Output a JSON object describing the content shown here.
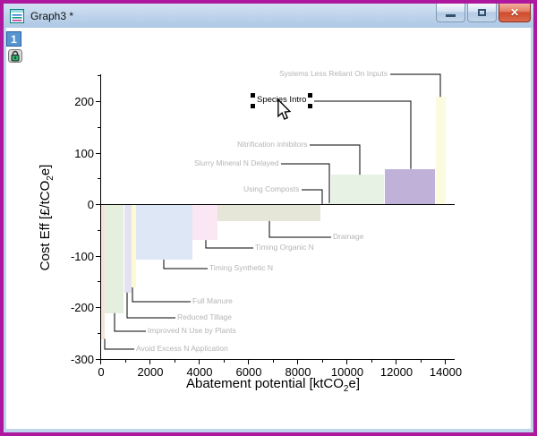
{
  "window": {
    "title": "Graph3 *",
    "buttons": {
      "minimize": "minimize",
      "restore": "restore",
      "close": "close"
    },
    "close_glyph": "✕"
  },
  "layer_panel": {
    "layer_badge": "1"
  },
  "icons": {
    "window_icon": "graph-window-icon",
    "lock": "lock-icon",
    "cursor": "arrow-cursor"
  },
  "chart_data": {
    "type": "bar",
    "title": "",
    "xlabel": "Abatement potential [ktCO2e]",
    "xlabel_parts": {
      "pre": "Abatement potential [ktCO",
      "sub": "2",
      "post": "e]"
    },
    "ylabel": "Cost Eff [£/tCO2e]",
    "ylabel_parts": {
      "pre": "Cost Eff [£/tCO",
      "sub": "2",
      "post": "e]"
    },
    "xlim": [
      0,
      14400
    ],
    "ylim": [
      -300,
      252
    ],
    "grid": false,
    "x_ticks": [
      0,
      2000,
      4000,
      6000,
      8000,
      10000,
      12000,
      14000
    ],
    "x_minor_ticks": [
      1000,
      3000,
      5000,
      7000,
      9000,
      11000,
      13000
    ],
    "y_ticks": [
      200,
      100,
      0,
      -100,
      -200,
      -300
    ],
    "y_minor_ticks": [
      250,
      150,
      50,
      -50,
      -150,
      -250
    ],
    "series": [
      {
        "name": "Avoid Excess N Application",
        "x_start": 0,
        "x_end": 150,
        "value": -260,
        "color": "#f6e4da"
      },
      {
        "name": "Improved N Use by Plants",
        "x_start": 150,
        "x_end": 900,
        "value": -210,
        "color": "#e4efdd"
      },
      {
        "name": "Reduced Tillage",
        "x_start": 950,
        "x_end": 1240,
        "value": -170,
        "color": "#e4e1f1"
      },
      {
        "name": "Full Manure",
        "x_start": 1240,
        "x_end": 1420,
        "value": -160,
        "color": "#fcfad2"
      },
      {
        "name": "Timing Synthetic N",
        "x_start": 1420,
        "x_end": 3710,
        "value": -106,
        "color": "#dde7f6"
      },
      {
        "name": "Timing Organic N",
        "x_start": 3710,
        "x_end": 4730,
        "value": -68,
        "color": "#fbe6f3"
      },
      {
        "name": "Drainage",
        "x_start": 4730,
        "x_end": 8900,
        "value": -31,
        "color": "#e5e5d8"
      },
      {
        "name": "Using Composts",
        "x_start": 8900,
        "x_end": 9050,
        "value": 2,
        "color": "#e8e4d4"
      },
      {
        "name": "Slurry Mineral N Delayed",
        "x_start": 9050,
        "x_end": 9350,
        "value": 4,
        "color": "#dcecdc"
      },
      {
        "name": "Nitrification inhibitors",
        "x_start": 9350,
        "x_end": 11480,
        "value": 59,
        "color": "#e8f2e4"
      },
      {
        "name": "Species Intro",
        "x_start": 11530,
        "x_end": 13560,
        "value": 70,
        "color": "#c0b1d9",
        "selected": true
      },
      {
        "name": "Systems Less Reliant On Inputs",
        "x_start": 13600,
        "x_end": 14000,
        "value": 210,
        "color": "#fcfbe0"
      }
    ]
  },
  "colors": {
    "frame_border": "#ad189e",
    "titlebar_bg": "#bcd2ea",
    "annotation_label": "#b5b5b5",
    "selected_label": "#000000",
    "axis": "#000000"
  }
}
